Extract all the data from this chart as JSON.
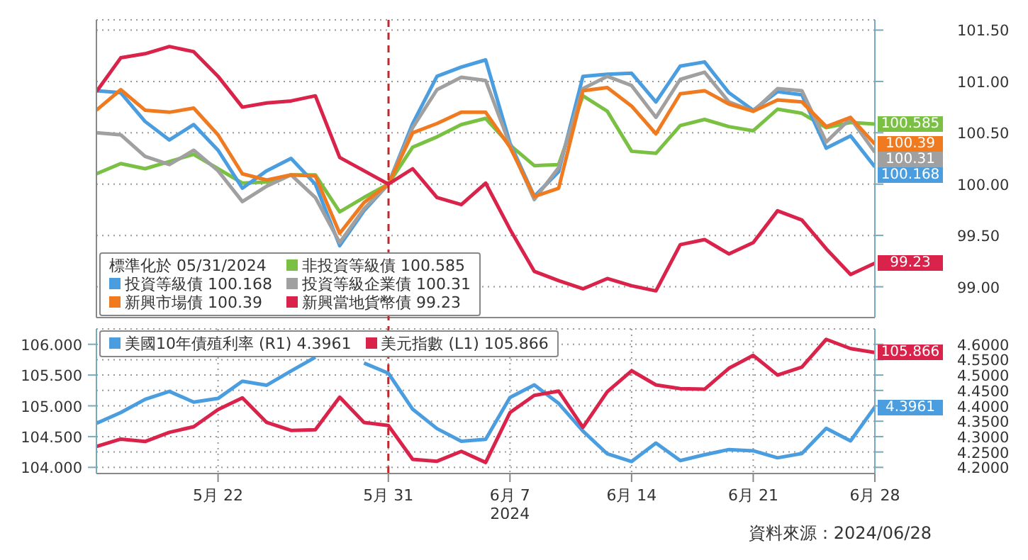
{
  "chart_data": [
    {
      "type": "line",
      "legend_title": "標準化於 05/31/2024",
      "legend": "bottom left",
      "grid": true,
      "tick_labels": "y",
      "marker": "none",
      "categories": [
        null,
        null,
        null,
        null,
        null,
        null,
        null,
        null,
        null,
        null,
        null,
        null,
        null,
        null,
        null,
        null,
        null,
        null,
        null,
        null,
        null,
        null,
        null,
        null,
        null,
        null,
        null,
        null,
        null,
        null,
        null,
        null,
        null
      ],
      "ylim": [
        98.7,
        101.6
      ],
      "yticks": [
        {
          "value": 99,
          "label": "99.00"
        },
        {
          "value": 99.5,
          "label": "99.50"
        },
        {
          "value": 100,
          "label": "100.00"
        },
        {
          "value": 100.5,
          "label": "100.50"
        },
        {
          "value": 101,
          "label": "101.00"
        },
        {
          "value": 101.5,
          "label": "101.50"
        }
      ],
      "series": [
        {
          "name": "非投資等級債 100.585",
          "color": "#7ac143",
          "values": [
            100.1,
            100.2,
            100.15,
            100.22,
            100.29,
            100.15,
            100.01,
            100.02,
            100.09,
            100.09,
            99.73,
            99.87,
            100,
            100.36,
            100.46,
            100.58,
            100.64,
            100.38,
            100.18,
            100.19,
            100.86,
            100.71,
            100.32,
            100.3,
            100.57,
            100.63,
            100.56,
            100.52,
            100.73,
            100.69,
            100.55,
            100.6,
            100.585
          ],
          "value_labels": [
            null,
            null,
            null,
            null,
            null,
            null,
            null,
            null,
            null,
            null,
            null,
            null,
            null,
            null,
            null,
            null,
            null,
            null,
            null,
            null,
            null,
            null,
            null,
            null,
            null,
            null,
            null,
            null,
            null,
            null,
            null,
            null,
            "100.585"
          ]
        },
        {
          "name": "投資等級債 100.168",
          "color": "#4a9ee0",
          "values": [
            100.91,
            100.89,
            100.61,
            100.43,
            100.58,
            100.33,
            99.96,
            100.13,
            100.25,
            100.0,
            99.4,
            99.74,
            100,
            100.59,
            101.05,
            101.14,
            101.21,
            100.4,
            99.88,
            100.12,
            101.05,
            101.07,
            101.08,
            100.8,
            101.15,
            101.19,
            100.89,
            100.72,
            100.9,
            100.87,
            100.35,
            100.47,
            100.168
          ],
          "value_labels": [
            null,
            null,
            null,
            null,
            null,
            null,
            null,
            null,
            null,
            null,
            null,
            null,
            null,
            null,
            null,
            null,
            null,
            null,
            null,
            null,
            null,
            null,
            null,
            null,
            null,
            null,
            null,
            null,
            null,
            null,
            null,
            null,
            "100.168"
          ]
        },
        {
          "name": "投資等級企業債 100.31",
          "color": "#a0a0a0",
          "values": [
            100.5,
            100.48,
            100.27,
            100.19,
            100.33,
            100.13,
            99.83,
            99.98,
            100.09,
            99.87,
            99.43,
            99.76,
            100,
            100.55,
            100.92,
            101.04,
            101.01,
            100.38,
            99.85,
            100.16,
            100.93,
            101.05,
            100.96,
            100.65,
            101.02,
            101.09,
            100.8,
            100.71,
            100.93,
            100.91,
            100.41,
            100.64,
            100.31
          ],
          "value_labels": [
            null,
            null,
            null,
            null,
            null,
            null,
            null,
            null,
            null,
            null,
            null,
            null,
            null,
            null,
            null,
            null,
            null,
            null,
            null,
            null,
            null,
            null,
            null,
            null,
            null,
            null,
            null,
            null,
            null,
            null,
            null,
            null,
            "100.31"
          ]
        },
        {
          "name": "新興市場債 100.39",
          "color": "#f07a20",
          "values": [
            100.72,
            100.92,
            100.72,
            100.7,
            100.74,
            100.48,
            100.1,
            100.04,
            100.09,
            100.08,
            99.52,
            99.82,
            100,
            100.5,
            100.59,
            100.7,
            100.7,
            100.36,
            99.88,
            99.96,
            100.91,
            100.94,
            100.76,
            100.49,
            100.88,
            100.91,
            100.78,
            100.71,
            100.82,
            100.8,
            100.56,
            100.65,
            100.39
          ],
          "value_labels": [
            null,
            null,
            null,
            null,
            null,
            null,
            null,
            null,
            null,
            null,
            null,
            null,
            null,
            null,
            null,
            null,
            null,
            null,
            null,
            null,
            null,
            null,
            null,
            null,
            null,
            null,
            null,
            null,
            null,
            null,
            null,
            null,
            "100.39"
          ]
        },
        {
          "name": "新興當地貨幣債 99.23",
          "color": "#d9234a",
          "values": [
            100.9,
            101.23,
            101.27,
            101.34,
            101.29,
            101.05,
            100.75,
            100.79,
            100.81,
            100.86,
            100.26,
            100.13,
            100,
            100.15,
            99.87,
            99.8,
            100.01,
            99.56,
            99.15,
            99.06,
            98.98,
            99.08,
            99.01,
            98.96,
            99.41,
            99.46,
            99.32,
            99.43,
            99.74,
            99.65,
            99.37,
            99.12,
            99.23
          ],
          "value_labels": [
            null,
            null,
            null,
            null,
            null,
            null,
            null,
            null,
            null,
            null,
            null,
            null,
            null,
            null,
            null,
            null,
            null,
            null,
            null,
            null,
            null,
            null,
            null,
            null,
            null,
            null,
            null,
            null,
            null,
            null,
            null,
            null,
            "99.23"
          ]
        }
      ]
    },
    {
      "type": "line",
      "legend": "top left",
      "grid": true,
      "marker": "none",
      "categories": [
        null,
        null,
        null,
        null,
        null,
        "5月 22",
        null,
        null,
        null,
        null,
        null,
        null,
        "5月 31",
        null,
        null,
        null,
        null,
        "6月 7",
        null,
        null,
        null,
        null,
        "6月 14",
        null,
        null,
        null,
        null,
        "6月 21",
        null,
        null,
        null,
        null,
        "6月 28"
      ],
      "ylim": [
        103.9,
        106.25
      ],
      "yticks": [
        {
          "value": 104,
          "label": "104.000"
        },
        {
          "value": 104.5,
          "label": "104.500"
        },
        {
          "value": 105,
          "label": "105.000"
        },
        {
          "value": 105.5,
          "label": "105.500"
        },
        {
          "value": 106,
          "label": "106.000"
        }
      ],
      "y2lim": [
        4.18,
        4.65
      ],
      "y2ticks": [
        {
          "value": 4.2,
          "label": "4.2000"
        },
        {
          "value": 4.25,
          "label": "4.2500"
        },
        {
          "value": 4.3,
          "label": "4.3000"
        },
        {
          "value": 4.35,
          "label": "4.3500"
        },
        {
          "value": 4.4,
          "label": "4.4000"
        },
        {
          "value": 4.45,
          "label": "4.4500"
        },
        {
          "value": 4.5,
          "label": "4.5000"
        },
        {
          "value": 4.55,
          "label": "4.5500"
        },
        {
          "value": 4.6,
          "label": "4.6000"
        }
      ],
      "ref_lines": [
        {
          "axis": "x",
          "value": "5月 31",
          "color": "#c0282d",
          "line_style": "dashed"
        }
      ],
      "annotations": [
        "2024",
        "資料來源：2024/06/28"
      ],
      "series": [
        {
          "name": "美國10年債殖利率 (R1) 4.3961",
          "color": "#4a9ee0",
          "axis": "y2",
          "values": [
            4.343,
            4.378,
            4.421,
            4.447,
            4.412,
            4.424,
            4.48,
            4.467,
            4.513,
            4.558,
            null,
            4.539,
            4.506,
            4.389,
            4.326,
            4.285,
            4.291,
            4.427,
            4.468,
            4.408,
            4.318,
            4.244,
            4.219,
            4.279,
            4.222,
            4.241,
            4.258,
            4.254,
            4.231,
            4.245,
            4.327,
            4.286,
            4.3961
          ],
          "value_labels": [
            null,
            null,
            null,
            null,
            null,
            null,
            null,
            null,
            null,
            null,
            null,
            null,
            null,
            null,
            null,
            null,
            null,
            null,
            null,
            null,
            null,
            null,
            null,
            null,
            null,
            null,
            null,
            null,
            null,
            null,
            null,
            null,
            "4.3961"
          ]
        },
        {
          "name": "美元指數 (L1) 105.866",
          "color": "#d9234a",
          "values": [
            104.34,
            104.46,
            104.42,
            104.57,
            104.66,
            104.94,
            105.13,
            104.73,
            104.6,
            104.61,
            105.14,
            104.73,
            104.68,
            104.13,
            104.1,
            104.26,
            104.08,
            104.89,
            105.17,
            105.24,
            104.65,
            105.23,
            105.57,
            105.34,
            105.28,
            105.27,
            105.61,
            105.82,
            105.5,
            105.63,
            106.08,
            105.93,
            105.866
          ],
          "value_labels": [
            null,
            null,
            null,
            null,
            null,
            null,
            null,
            null,
            null,
            null,
            null,
            null,
            null,
            null,
            null,
            null,
            null,
            null,
            null,
            null,
            null,
            null,
            null,
            null,
            null,
            null,
            null,
            null,
            null,
            null,
            null,
            null,
            "105.866"
          ]
        }
      ]
    }
  ]
}
